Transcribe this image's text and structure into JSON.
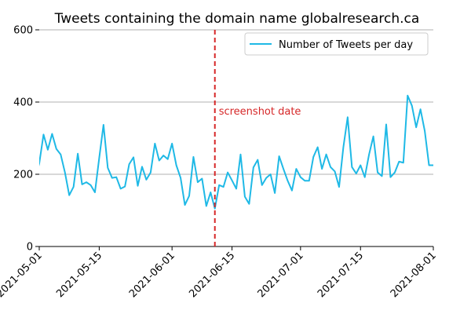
{
  "chart_data": {
    "type": "line",
    "title": "Tweets containing the domain name globalresearch.ca",
    "xlabel": "",
    "ylabel": "",
    "xlim": [
      "2021-05-01",
      "2021-08-01"
    ],
    "ylim": [
      0,
      600
    ],
    "yticks": [
      0,
      200,
      400,
      600
    ],
    "xticks": [
      "2021-05-01",
      "2021-05-15",
      "2021-06-01",
      "2021-06-15",
      "2021-07-01",
      "2021-07-15",
      "2021-08-01"
    ],
    "grid": "horizontal",
    "legend_position": "top-right",
    "series": [
      {
        "name": "Number of Tweets per day",
        "color": "#1fb9e6",
        "x": [
          "2021-04-30",
          "2021-05-01",
          "2021-05-02",
          "2021-05-03",
          "2021-05-04",
          "2021-05-05",
          "2021-05-06",
          "2021-05-07",
          "2021-05-08",
          "2021-05-09",
          "2021-05-10",
          "2021-05-11",
          "2021-05-12",
          "2021-05-13",
          "2021-05-14",
          "2021-05-15",
          "2021-05-16",
          "2021-05-17",
          "2021-05-18",
          "2021-05-19",
          "2021-05-20",
          "2021-05-21",
          "2021-05-22",
          "2021-05-23",
          "2021-05-24",
          "2021-05-25",
          "2021-05-26",
          "2021-05-27",
          "2021-05-28",
          "2021-05-29",
          "2021-05-30",
          "2021-05-31",
          "2021-06-01",
          "2021-06-02",
          "2021-06-03",
          "2021-06-04",
          "2021-06-05",
          "2021-06-06",
          "2021-06-07",
          "2021-06-08",
          "2021-06-09",
          "2021-06-10",
          "2021-06-11",
          "2021-06-12",
          "2021-06-13",
          "2021-06-14",
          "2021-06-15",
          "2021-06-16",
          "2021-06-17",
          "2021-06-18",
          "2021-06-19",
          "2021-06-20",
          "2021-06-21",
          "2021-06-22",
          "2021-06-23",
          "2021-06-24",
          "2021-06-25",
          "2021-06-26",
          "2021-06-27",
          "2021-06-28",
          "2021-06-29",
          "2021-06-30",
          "2021-07-01",
          "2021-07-02",
          "2021-07-03",
          "2021-07-04",
          "2021-07-05",
          "2021-07-06",
          "2021-07-07",
          "2021-07-08",
          "2021-07-09",
          "2021-07-10",
          "2021-07-11",
          "2021-07-12",
          "2021-07-13",
          "2021-07-14",
          "2021-07-15",
          "2021-07-16",
          "2021-07-17",
          "2021-07-18",
          "2021-07-19",
          "2021-07-20",
          "2021-07-21",
          "2021-07-22",
          "2021-07-23",
          "2021-07-24",
          "2021-07-25",
          "2021-07-26",
          "2021-07-27",
          "2021-07-28",
          "2021-07-29",
          "2021-07-30",
          "2021-07-31",
          "2021-08-01"
        ],
        "values": [
          188,
          230,
          310,
          268,
          312,
          270,
          255,
          205,
          142,
          165,
          257,
          172,
          178,
          170,
          150,
          245,
          337,
          218,
          190,
          192,
          160,
          166,
          228,
          247,
          168,
          221,
          185,
          205,
          285,
          238,
          252,
          242,
          285,
          225,
          190,
          115,
          140,
          248,
          178,
          188,
          112,
          150,
          105,
          170,
          165,
          205,
          183,
          160,
          255,
          138,
          118,
          219,
          240,
          170,
          190,
          200,
          148,
          250,
          215,
          182,
          155,
          215,
          192,
          182,
          182,
          248,
          275,
          215,
          255,
          220,
          208,
          165,
          275,
          358,
          220,
          202,
          225,
          192,
          255,
          305,
          205,
          195,
          338,
          192,
          205,
          235,
          232,
          418,
          390,
          330,
          380,
          320,
          225,
          225
        ]
      }
    ],
    "annotations": [
      {
        "type": "vline",
        "x": "2021-06-11",
        "color": "#d62728",
        "label": "screenshot date"
      }
    ]
  }
}
